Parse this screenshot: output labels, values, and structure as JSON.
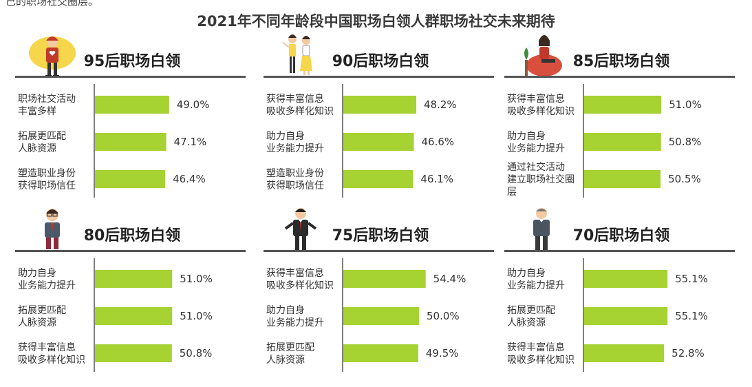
{
  "top_cut_text": "己的职场社交圈层。",
  "chart_data": {
    "type": "bar",
    "title": "2021年不同年龄段中国职场白领人群职场社交未来期待",
    "bar_color": "#a6d232",
    "axis_color": "#555555",
    "panels": [
      {
        "title": "95后职场白领",
        "figure": "young-man-with-heart-icon",
        "categories": [
          [
            "职场社交活动",
            "丰富多样"
          ],
          [
            "拓展更匹配",
            "人脉资源"
          ],
          [
            "塑造职业身份",
            "获得职场信任"
          ]
        ],
        "values": [
          49.0,
          47.1,
          46.4
        ],
        "labels": [
          "49.0%",
          "47.1%",
          "46.4%"
        ]
      },
      {
        "title": "90后职场白领",
        "figure": "two-women-walking-icon",
        "categories": [
          [
            "获得丰富信息",
            "吸收多样化知识"
          ],
          [
            "助力自身",
            "业务能力提升"
          ],
          [
            "塑造职业身份",
            "获得职场信任"
          ]
        ],
        "values": [
          48.2,
          46.6,
          46.1
        ],
        "labels": [
          "48.2%",
          "46.6%",
          "46.1%"
        ]
      },
      {
        "title": "85后职场白领",
        "figure": "woman-sitting-icon",
        "categories": [
          [
            "获得丰富信息",
            "吸收多样化知识"
          ],
          [
            "助力自身",
            "业务能力提升"
          ],
          [
            "通过社交活动",
            "建立职场社交圈",
            "层"
          ]
        ],
        "values": [
          51.0,
          50.8,
          50.5
        ],
        "labels": [
          "51.0%",
          "50.8%",
          "50.5%"
        ]
      },
      {
        "title": "80后职场白领",
        "figure": "man-with-glasses-icon",
        "categories": [
          [
            "助力自身",
            "业务能力提升"
          ],
          [
            "拓展更匹配",
            "人脉资源"
          ],
          [
            "获得丰富信息",
            "吸收多样化知识"
          ]
        ],
        "values": [
          51.0,
          51.0,
          50.8
        ],
        "labels": [
          "51.0%",
          "51.0%",
          "50.8%"
        ]
      },
      {
        "title": "75后职场白领",
        "figure": "businessman-icon",
        "categories": [
          [
            "获得丰富信息",
            "吸收多样化知识"
          ],
          [
            "助力自身",
            "业务能力提升"
          ],
          [
            "拓展更匹配",
            "人脉资源"
          ]
        ],
        "values": [
          54.4,
          50.0,
          49.5
        ],
        "labels": [
          "54.4%",
          "50.0%",
          "49.5%"
        ]
      },
      {
        "title": "70后职场白领",
        "figure": "senior-businessman-icon",
        "categories": [
          [
            "助力自身",
            "业务能力提升"
          ],
          [
            "拓展更匹配",
            "人脉资源"
          ],
          [
            "获得丰富信息",
            "吸收多样化知识"
          ]
        ],
        "values": [
          55.1,
          55.1,
          52.8
        ],
        "labels": [
          "55.1%",
          "55.1%",
          "52.8%"
        ]
      }
    ]
  }
}
